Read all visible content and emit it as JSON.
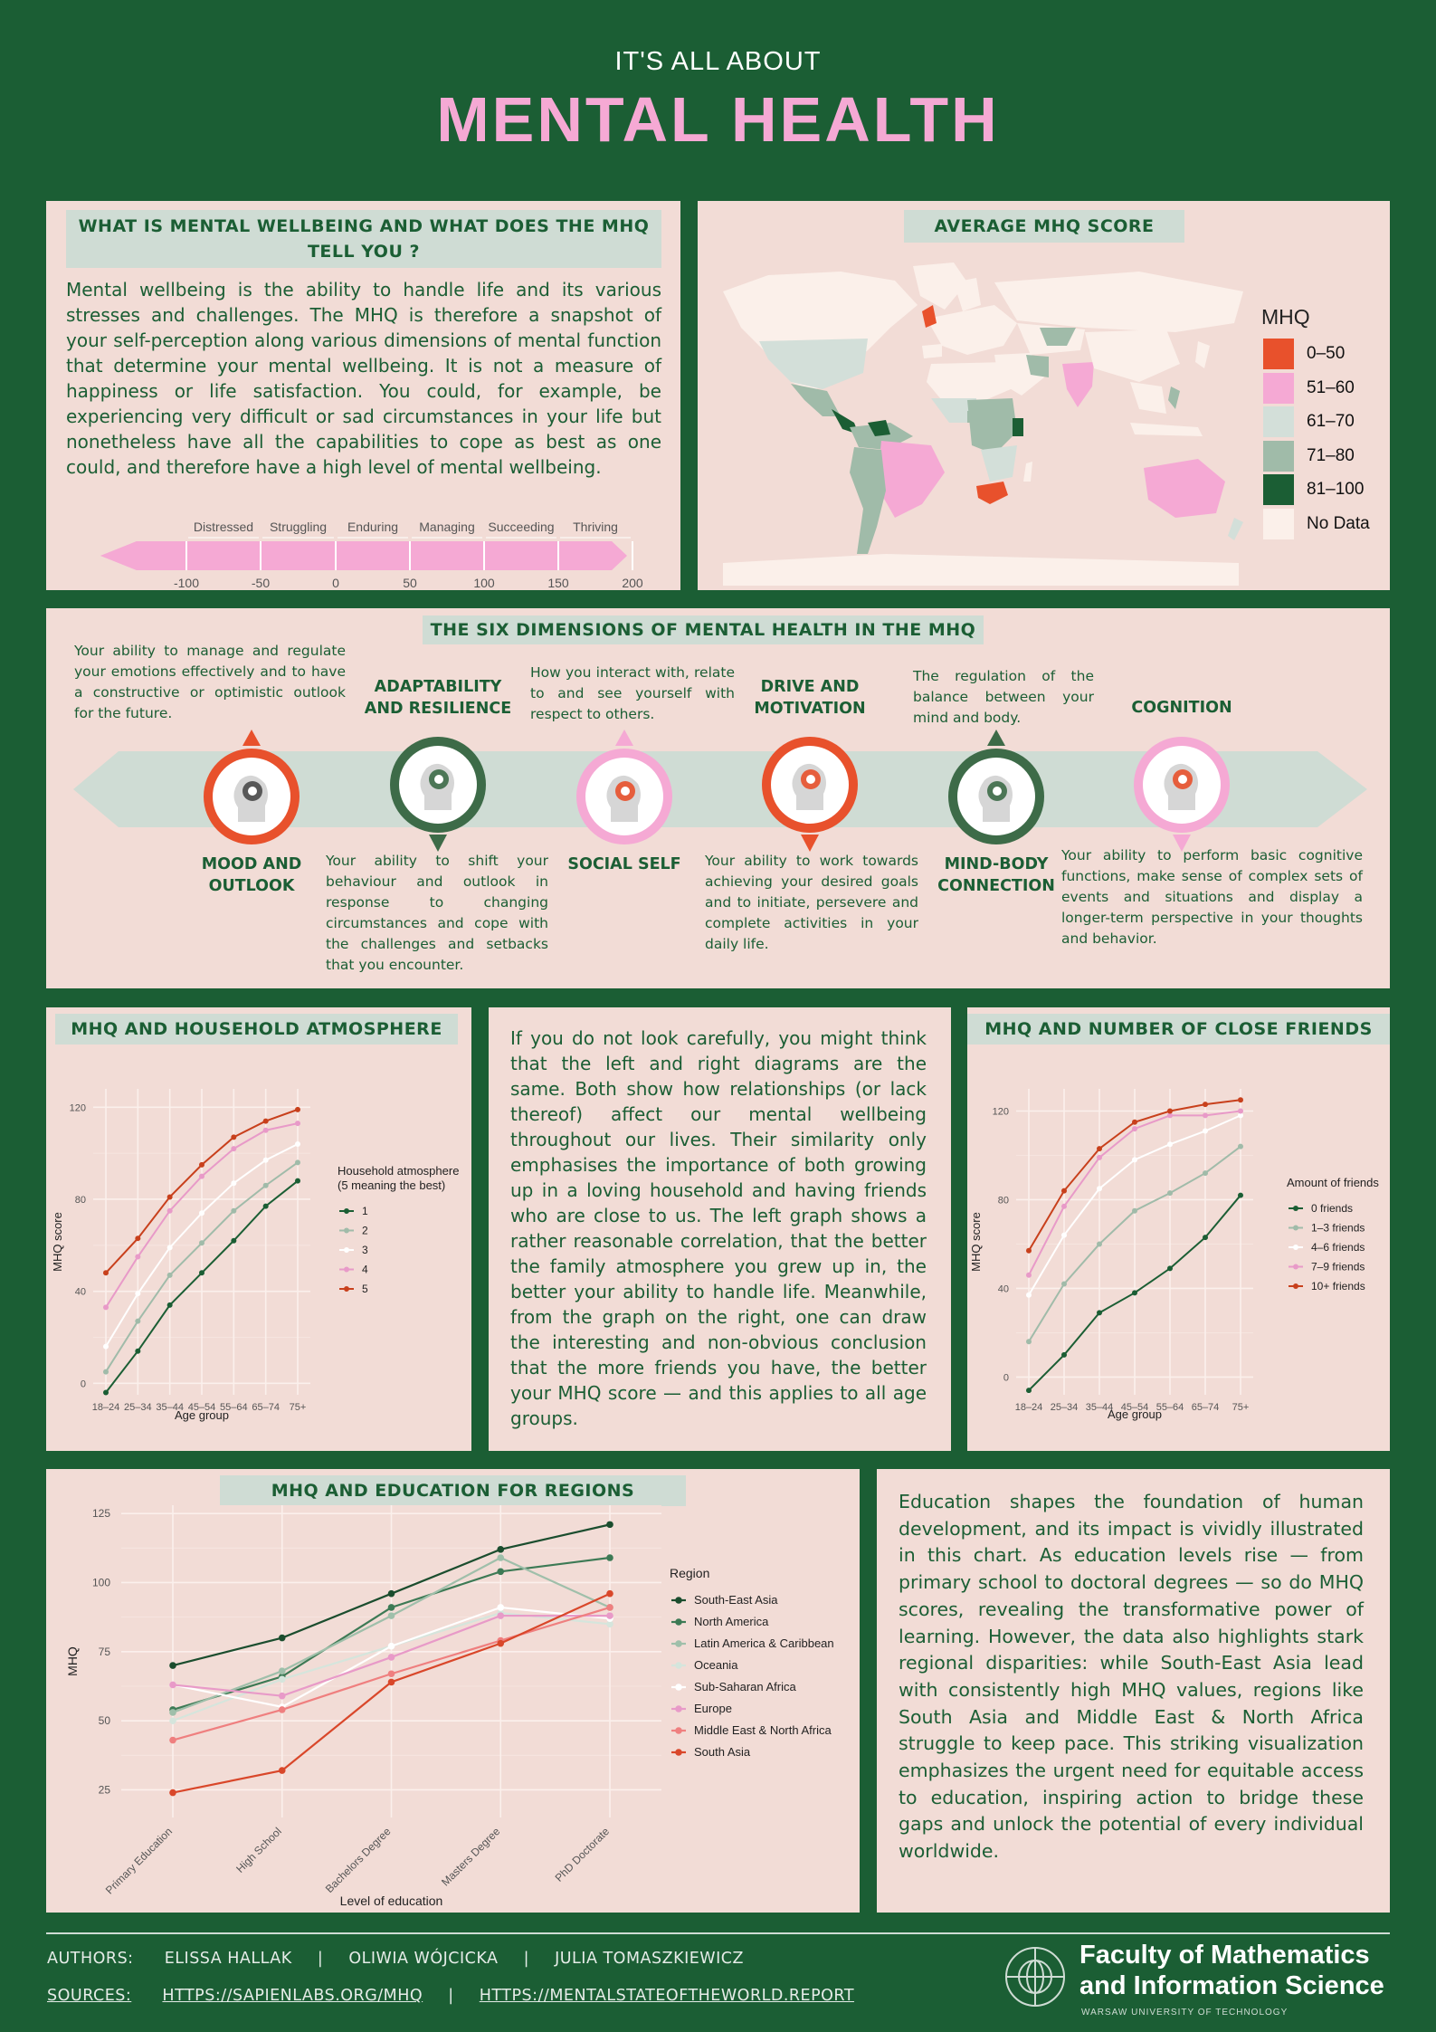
{
  "header": {
    "kicker": "IT'S ALL ABOUT",
    "title": "MENTAL HEALTH"
  },
  "wellbeing": {
    "title": "WHAT IS MENTAL WELLBEING AND WHAT DOES THE MHQ TELL YOU ?",
    "text": "Mental wellbeing is the ability to handle life and its various stresses and challenges. The MHQ is therefore a snapshot of your self-perception along various dimensions of mental function that determine your mental wellbeing. It is not a measure of happiness or life satisfaction. You could, for example, be experiencing very difficult or sad circumstances in your life but nonetheless have all the capabilities to cope as best as one could, and therefore have a high level of mental wellbeing.",
    "scale_labels": [
      "Distressed",
      "Struggling",
      "Enduring",
      "Managing",
      "Succeeding",
      "Thriving"
    ],
    "scale_ticks": [
      "-100",
      "-50",
      "0",
      "50",
      "100",
      "150",
      "200"
    ]
  },
  "map": {
    "title": "AVERAGE  MHQ SCORE",
    "legend_title": "MHQ",
    "legend": [
      {
        "label": "0–50",
        "color": "#e8512c"
      },
      {
        "label": "51–60",
        "color": "#f5a9d4"
      },
      {
        "label": "61–70",
        "color": "#d3dfd9"
      },
      {
        "label": "71–80",
        "color": "#a0bba9"
      },
      {
        "label": "81–100",
        "color": "#1b5e34"
      },
      {
        "label": "No Data",
        "color": "#fbf0ea"
      }
    ]
  },
  "dimensions": {
    "title": "THE SIX DIMENSIONS OF MENTAL HEALTH IN THE MHQ",
    "items": [
      {
        "name": "MOOD AND OUTLOOK",
        "desc": "Your ability to manage and regulate your emotions effectively and to have a constructive or optimistic outlook for the future.",
        "icon": "storm-cloud-head-icon",
        "color": "#e8512c"
      },
      {
        "name": "ADAPTABILITY AND RESILIENCE",
        "desc": "Your ability to shift your behaviour and outlook in response to changing circumstances and cope with the challenges and setbacks that you encounter.",
        "icon": "compass-head-icon",
        "color": "#3d6b48"
      },
      {
        "name": "SOCIAL SELF",
        "desc": "How you interact with, relate to and see yourself with respect to others.",
        "icon": "eye-head-icon",
        "color": "#f5a9d4"
      },
      {
        "name": "DRIVE AND MOTIVATION",
        "desc": "Your ability to work towards achieving your desired goals and to initiate, persevere and complete activities in your daily life.",
        "icon": "target-head-icon",
        "color": "#e8512c"
      },
      {
        "name": "MIND-BODY CONNECTION",
        "desc": "The regulation of the balance between your mind and body.",
        "icon": "brain-body-icon",
        "color": "#3d6b48"
      },
      {
        "name": "COGNITION",
        "desc": "Your ability to perform basic cognitive functions, make sense of complex sets of events and situations and display a longer-term perspective in your thoughts and behavior.",
        "icon": "gears-head-icon",
        "color": "#f5a9d4"
      }
    ]
  },
  "household": {
    "title": "MHQ AND HOUSEHOLD ATMOSPHERE"
  },
  "middle_text": "If you do not look carefully, you might think that the left and right diagrams are the same. Both show how relationships (or lack thereof) affect our mental wellbeing throughout our lives. Their similarity only emphasises the importance of both growing up in a loving household and having friends who are close to us. The left graph shows a rather reasonable correlation, that the better the family atmosphere you grew up in, the better your ability to handle life. Meanwhile, from the graph on the right, one can draw the interesting and non-obvious conclusion that the more friends you have, the better your MHQ score — and this applies to all age groups.",
  "friends": {
    "title": "MHQ AND NUMBER OF CLOSE FRIENDS"
  },
  "education": {
    "title": "MHQ AND EDUCATION FOR REGIONS"
  },
  "education_text": "Education shapes the foundation of human development, and its impact is vividly illustrated in this chart. As education levels rise — from primary school to doctoral degrees — so do MHQ scores, revealing the transformative power of learning. However, the data also highlights stark regional disparities: while South-East Asia lead with consistently high MHQ values, regions like South Asia and Middle East & North Africa struggle to keep pace. This striking visualization emphasizes the urgent need for equitable access to education, inspiring action to bridge these gaps and unlock the potential of every individual worldwide.",
  "footer": {
    "authors_label": "AUTHORS:",
    "authors": [
      "ELISSA HALLAK",
      "OLIWIA WÓJCICKA",
      "JULIA TOMASZKIEWICZ"
    ],
    "sep": "|",
    "sources_label": "SOURCES:",
    "sources": [
      "HTTPS://SAPIENLABS.ORG/MHQ",
      "HTTPS://MENTALSTATEOFTHEWORLD.REPORT"
    ],
    "faculty_line1": "Faculty of Mathematics",
    "faculty_line2": "and Information Science",
    "university": "WARSAW UNIVERSITY OF TECHNOLOGY"
  },
  "chart_data": [
    {
      "type": "line",
      "title": "",
      "xlabel": "Age group",
      "ylabel": "MHQ score",
      "x": [
        "18–24",
        "25–34",
        "35–44",
        "45–54",
        "55–64",
        "65–74",
        "75+"
      ],
      "yticks": [
        "0",
        "40",
        "80",
        "120"
      ],
      "ylim": [
        -5,
        128
      ],
      "legend_title": "Household atmosphere\n(5 meaning the best)",
      "legend_title_lines": [
        "Household atmosphere",
        "(5 meaning the best)"
      ],
      "series": [
        {
          "name": "1",
          "color": "#1b5e34",
          "values": [
            -4,
            14,
            34,
            48,
            62,
            77,
            88
          ]
        },
        {
          "name": "2",
          "color": "#a0bba9",
          "values": [
            5,
            27,
            47,
            61,
            75,
            86,
            96
          ]
        },
        {
          "name": "3",
          "color": "#ffffff",
          "values": [
            16,
            39,
            59,
            74,
            87,
            97,
            104
          ]
        },
        {
          "name": "4",
          "color": "#e89ac8",
          "values": [
            33,
            55,
            75,
            90,
            102,
            110,
            113
          ]
        },
        {
          "name": "5",
          "color": "#c8401c",
          "values": [
            48,
            63,
            81,
            95,
            107,
            114,
            119
          ]
        }
      ]
    },
    {
      "type": "line",
      "title": "",
      "xlabel": "Age group",
      "ylabel": "MHQ score",
      "x": [
        "18–24",
        "25–34",
        "35–44",
        "45–54",
        "55–64",
        "65–74",
        "75+"
      ],
      "yticks": [
        "0",
        "40",
        "80",
        "120"
      ],
      "ylim": [
        -8,
        130
      ],
      "legend_title": "Amount of friends",
      "legend_title_lines": [
        "Amount of friends"
      ],
      "series": [
        {
          "name": "0 friends",
          "color": "#1b5e34",
          "values": [
            -6,
            10,
            29,
            38,
            49,
            63,
            82
          ]
        },
        {
          "name": "1–3 friends",
          "color": "#a0bba9",
          "values": [
            16,
            42,
            60,
            75,
            83,
            92,
            104
          ]
        },
        {
          "name": "4–6 friends",
          "color": "#ffffff",
          "values": [
            37,
            64,
            85,
            98,
            105,
            111,
            118
          ]
        },
        {
          "name": "7–9 friends",
          "color": "#e89ac8",
          "values": [
            46,
            77,
            99,
            112,
            118,
            118,
            120
          ]
        },
        {
          "name": "10+ friends",
          "color": "#c8401c",
          "values": [
            57,
            84,
            103,
            115,
            120,
            123,
            125
          ]
        }
      ]
    },
    {
      "type": "line",
      "title": "",
      "xlabel": "Level of education",
      "ylabel": "MHQ",
      "x": [
        "Primary Education",
        "High School",
        "Bachelors Degree",
        "Masters Degree",
        "PhD Doctorate"
      ],
      "yticks": [
        "25",
        "50",
        "75",
        "100",
        "125"
      ],
      "ylim": [
        15,
        128
      ],
      "legend_title": "Region",
      "legend_title_lines": [
        "Region"
      ],
      "series": [
        {
          "name": "South-East Asia",
          "color": "#1b4d2e",
          "values": [
            70,
            80,
            96,
            112,
            121
          ]
        },
        {
          "name": "North America",
          "color": "#3d7a55",
          "values": [
            54,
            66,
            91,
            104,
            109
          ]
        },
        {
          "name": "Latin America & Caribbean",
          "color": "#9fbfaa",
          "values": [
            53,
            68,
            88,
            109,
            91
          ]
        },
        {
          "name": "Oceania",
          "color": "#d5e5dc",
          "values": [
            50,
            65,
            77,
            89,
            85
          ]
        },
        {
          "name": "Sub-Saharan Africa",
          "color": "#ffffff",
          "values": [
            63,
            55,
            77,
            91,
            87
          ]
        },
        {
          "name": "Europe",
          "color": "#e89ac8",
          "values": [
            63,
            59,
            73,
            88,
            88
          ]
        },
        {
          "name": "Middle East & North Africa",
          "color": "#ef7f7f",
          "values": [
            43,
            54,
            67,
            79,
            91
          ]
        },
        {
          "name": "South Asia",
          "color": "#d9472a",
          "values": [
            24,
            32,
            64,
            78,
            96
          ]
        }
      ]
    }
  ]
}
